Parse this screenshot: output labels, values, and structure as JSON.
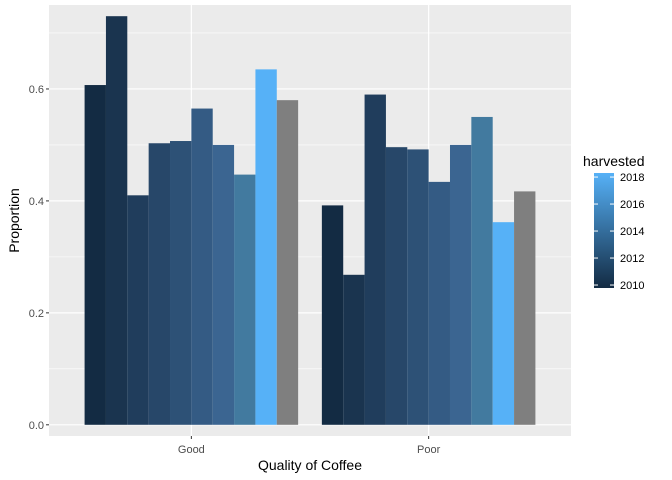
{
  "chart_data": {
    "type": "bar",
    "xlabel": "Quality of Coffee",
    "ylabel": "Proportion",
    "categories": [
      "Good",
      "Poor"
    ],
    "ylim": [
      -0.02,
      0.75
    ],
    "yticks": [
      0.0,
      0.2,
      0.4,
      0.6
    ],
    "ytick_labels": [
      "0.0",
      "0.2",
      "0.4",
      "0.6"
    ],
    "panel_background": "#ebebeb",
    "grid_color": "#ffffff",
    "grid": true,
    "legend": {
      "title": "harvested",
      "position": "right",
      "breaks": [
        2018,
        2016,
        2014,
        2012,
        2010
      ],
      "labels": [
        "2018",
        "2016",
        "2014",
        "2012",
        "2010"
      ],
      "low_color": "#132b43",
      "high_color": "#56b1f7"
    },
    "series": [
      {
        "year": 2010,
        "color": "#132b43",
        "values": [
          0.607,
          0.392
        ]
      },
      {
        "year": 2011,
        "color": "#1a344f",
        "values": [
          0.73,
          0.268
        ]
      },
      {
        "year": 2012,
        "color": "#203d5c",
        "values": [
          0.41,
          0.59
        ]
      },
      {
        "year": 2013,
        "color": "#274769",
        "values": [
          0.503,
          0.496
        ]
      },
      {
        "year": 2014,
        "color": "#2d5176",
        "values": [
          0.507,
          0.492
        ]
      },
      {
        "year": 2015,
        "color": "#345b84",
        "values": [
          0.565,
          0.434
        ]
      },
      {
        "year": 2016,
        "color": "#3b6591",
        "values": [
          0.5,
          0.5
        ]
      },
      {
        "year": 2017,
        "color": "#427a9f",
        "values": [
          0.447,
          0.55
        ]
      },
      {
        "year": 2018,
        "color": "#56b1f7",
        "values": [
          0.635,
          0.362
        ]
      },
      {
        "year": null,
        "color": "#7f7f7f",
        "values": [
          0.58,
          0.417
        ]
      }
    ]
  }
}
